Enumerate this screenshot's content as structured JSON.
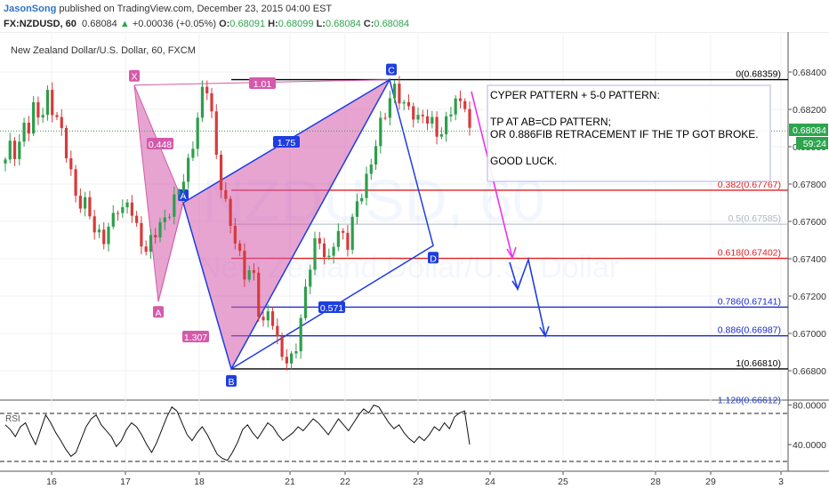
{
  "header": {
    "author": "JasonSong",
    "published": "published on TradingView.com, December 23, 2015 04:00 EST",
    "symbol": "FX:NZDUSD, 60",
    "last": "0.68084",
    "change": "+0.00036 (+0.05%)",
    "o_label": "O:",
    "o_value": "0.68091",
    "h_label": "H:",
    "h_value": "0.68099",
    "l_label": "L:",
    "l_value": "0.68084",
    "c_label": "C:",
    "c_value": "0.68084"
  },
  "chart_data": {
    "type": "candlestick",
    "title": "New Zealand Dollar/U.S. Dollar, 60, FXCM",
    "watermark": {
      "symbol": "NZDUSD, 60",
      "name": "New Zealand Dollar/U.S. Dollar"
    },
    "price_axis": {
      "ticks": [
        "0.68400",
        "0.68200",
        "0.68000",
        "0.67800",
        "0.67600",
        "0.67400",
        "0.67200",
        "0.67000",
        "0.66800"
      ],
      "range": [
        0.6662,
        0.6851
      ]
    },
    "time_axis": {
      "ticks": [
        "16",
        "17",
        "18",
        "21",
        "22",
        "23",
        "24",
        "25",
        "28",
        "29",
        "3"
      ]
    },
    "current_price": "0.68084",
    "countdown": "59:24",
    "price_path": [
      [
        0.6791,
        0.6802,
        0.6796,
        0.6813,
        0.6808,
        0.6822,
        0.6815,
        0.683,
        0.6818,
        0.6812
      ],
      [
        0.6805,
        0.679,
        0.6772,
        0.6766,
        0.6771,
        0.6758,
        0.6752,
        0.6748,
        0.676,
        0.6771
      ],
      [
        0.6765,
        0.677,
        0.6758,
        0.6752,
        0.6745,
        0.675,
        0.6755,
        0.6762,
        0.6768,
        0.6772
      ],
      [
        0.6778,
        0.679,
        0.6805,
        0.682,
        0.6835,
        0.682,
        0.6795,
        0.6775,
        0.676,
        0.675
      ],
      [
        0.6742,
        0.673,
        0.6735,
        0.6712,
        0.6705,
        0.6718,
        0.6695,
        0.6688,
        0.6685,
        0.669
      ],
      [
        0.67,
        0.672,
        0.674,
        0.6755,
        0.6745,
        0.6735,
        0.675,
        0.676,
        0.6745,
        0.6758
      ],
      [
        0.677,
        0.678,
        0.679,
        0.68,
        0.6812,
        0.6822,
        0.6835,
        0.6826,
        0.6818,
        0.6822
      ],
      [
        0.6815,
        0.6818,
        0.681,
        0.6812,
        0.6806,
        0.6815,
        0.682,
        0.6822,
        0.6829,
        0.6808
      ]
    ],
    "harmonic_pattern": {
      "points": [
        {
          "label": "X",
          "price": 0.6833
        },
        {
          "label": "A",
          "price": 0.6717
        },
        {
          "label": "B",
          "price": 0.6681
        },
        {
          "label": "C",
          "price": 0.68359
        },
        {
          "label": "D",
          "price": 0.6747
        },
        {
          "label": "A",
          "price": 0.677
        }
      ],
      "ratios": [
        "1.01",
        "0.448",
        "1.75",
        "1.307",
        "0.571"
      ]
    },
    "fibonacci": [
      {
        "label": "0(0.68359)",
        "price": 0.68359,
        "color": "#000000"
      },
      {
        "label": "0.382(0.67767)",
        "price": 0.67767,
        "color": "#e02020"
      },
      {
        "label": "0.5(0.67585)",
        "price": 0.67585,
        "color": "#b0b6c8"
      },
      {
        "label": "0.618(0.67402)",
        "price": 0.67402,
        "color": "#e02020"
      },
      {
        "label": "0.786(0.67141)",
        "price": 0.67141,
        "color": "#1a2ac8"
      },
      {
        "label": "0.886(0.66987)",
        "price": 0.66987,
        "color": "#1a2ac8"
      },
      {
        "label": "1(0.66810)",
        "price": 0.6681,
        "color": "#000000"
      },
      {
        "label": "1.128(0.66612)",
        "price": 0.66612,
        "color": "#2040c0"
      }
    ],
    "note": {
      "line1": "CYPER PATTERN + 5-0 PATTERN:",
      "line2": "TP AT AB=CD PATTERN;",
      "line3": "OR 0.886FIB RETRACEMENT IF THE TP GOT BROKE.",
      "line4": "GOOD LUCK."
    },
    "rsi": {
      "label": "RSI",
      "ticks": [
        "80.0000",
        "40.0000"
      ],
      "levels": [
        80,
        30
      ],
      "range": [
        22,
        85
      ],
      "values": [
        60,
        55,
        48,
        58,
        62,
        50,
        40,
        55,
        70,
        62,
        52,
        44,
        35,
        28,
        32,
        45,
        58,
        66,
        70,
        60,
        54,
        48,
        38,
        44,
        55,
        62,
        58,
        50,
        40,
        32,
        42,
        55,
        68,
        78,
        74,
        62,
        50,
        44,
        52,
        58,
        50,
        40,
        30,
        26,
        24,
        32,
        42,
        55,
        60,
        52,
        46,
        54,
        62,
        58,
        50,
        44,
        48,
        52,
        58,
        54,
        60,
        66,
        62,
        56,
        50,
        58,
        66,
        60,
        54,
        62,
        70,
        76,
        72,
        80,
        78,
        70,
        62,
        56,
        60,
        52,
        46,
        42,
        48,
        44,
        50,
        58,
        54,
        62,
        56,
        68,
        72,
        74,
        40
      ]
    }
  }
}
